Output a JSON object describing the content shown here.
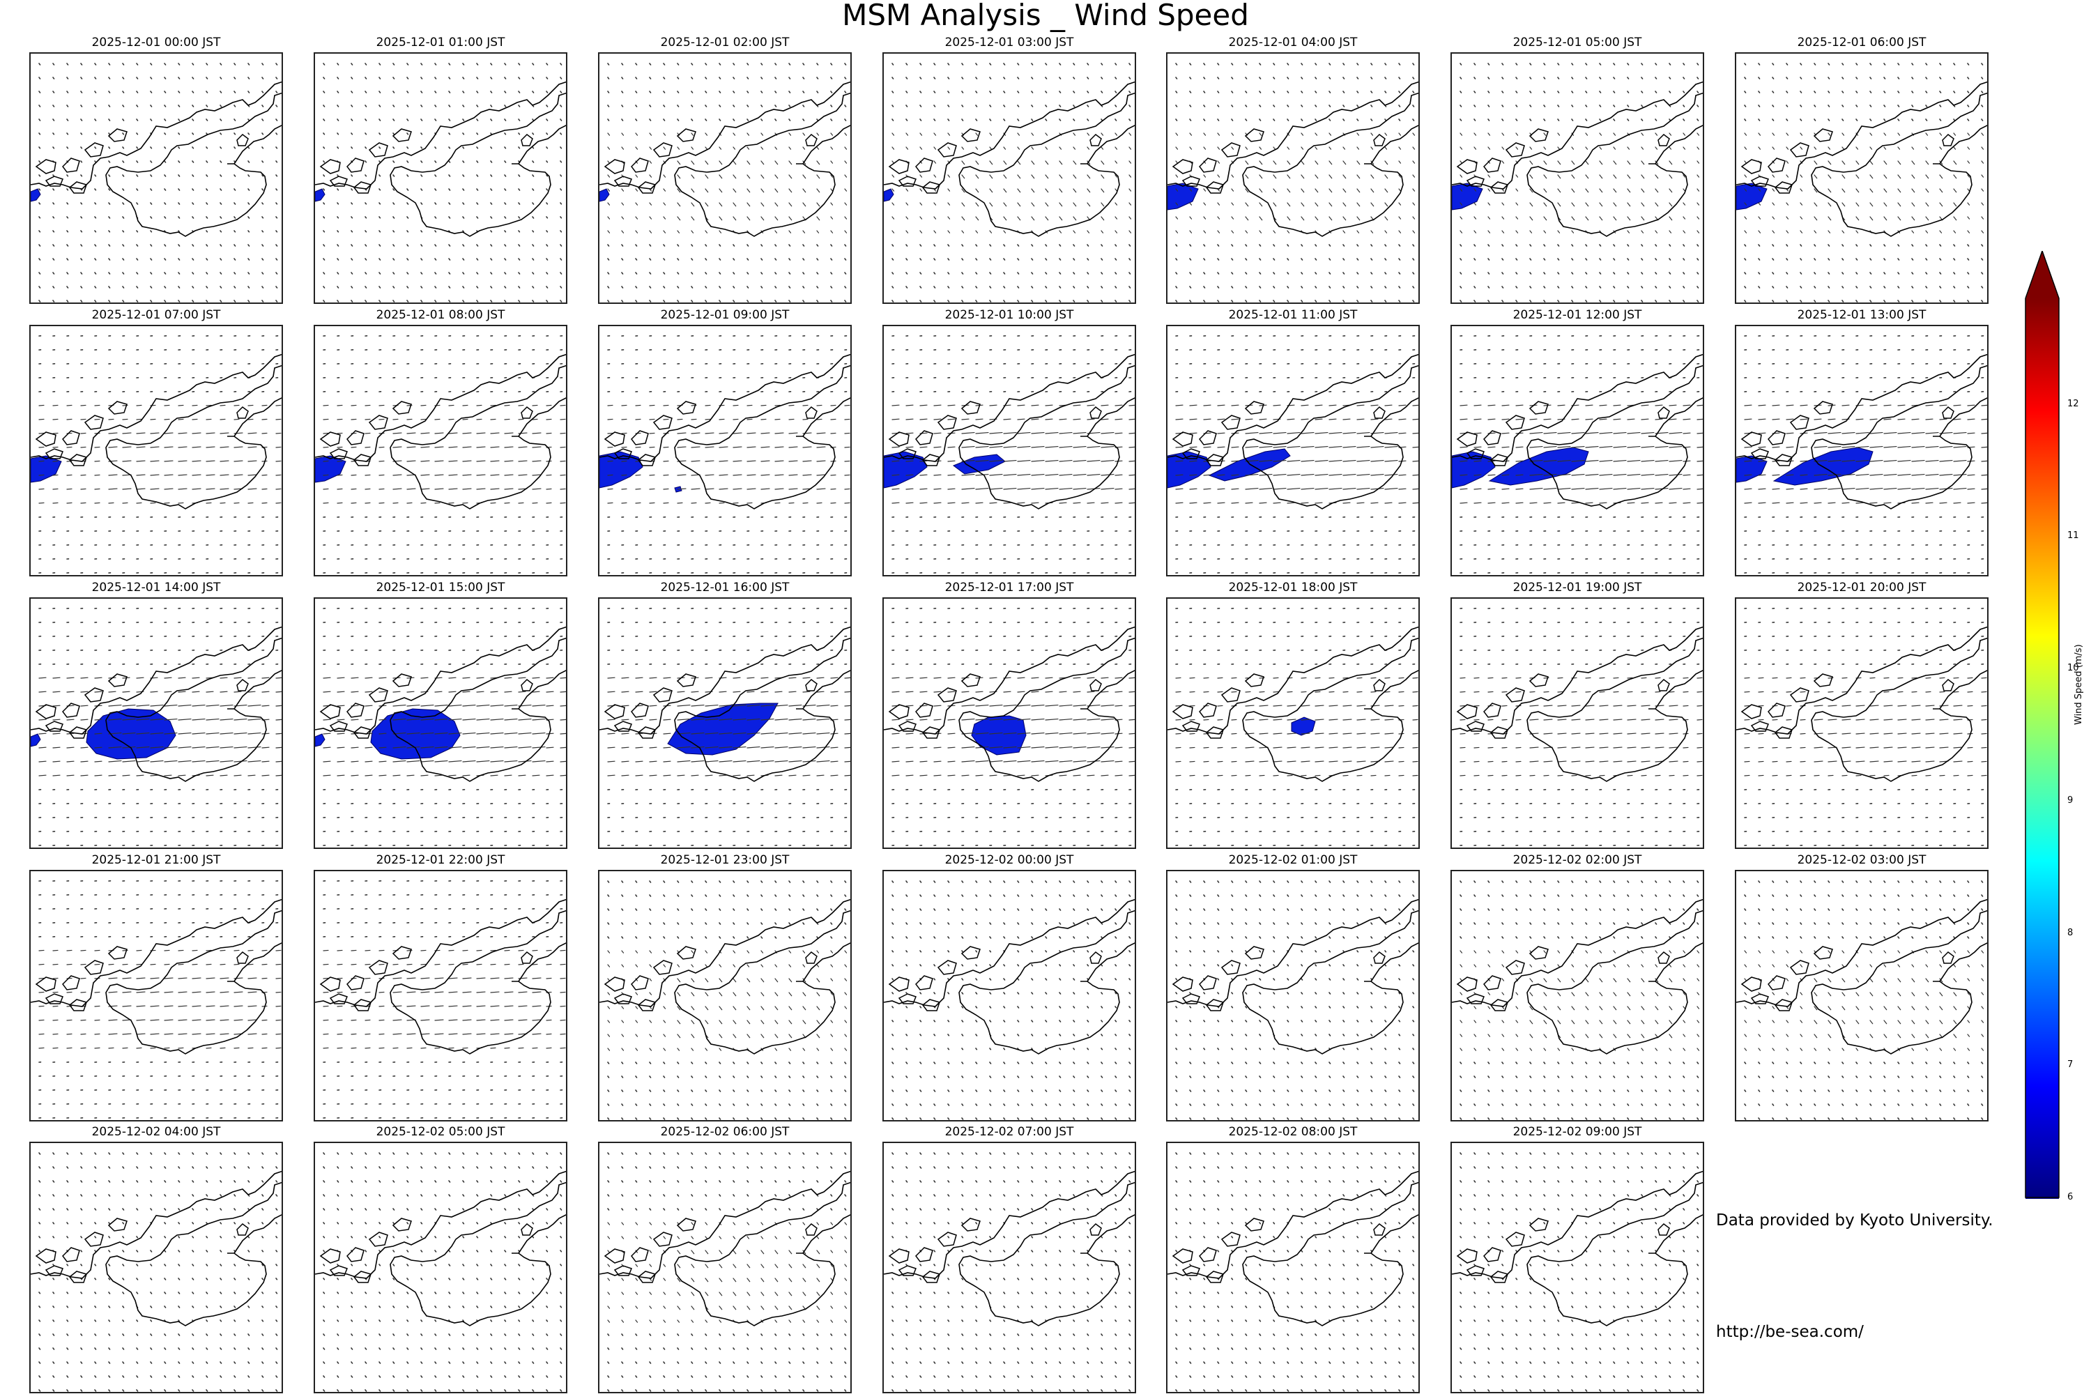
{
  "title": "MSM Analysis _ Wind Speed",
  "panels": [
    {
      "time": "2025-12-01 00:00 JST",
      "wind": "calm",
      "shade": [
        {
          "type": "edge",
          "size": "small"
        }
      ]
    },
    {
      "time": "2025-12-01 01:00 JST",
      "wind": "calm",
      "shade": [
        {
          "type": "edge",
          "size": "small"
        }
      ]
    },
    {
      "time": "2025-12-01 02:00 JST",
      "wind": "light",
      "shade": [
        {
          "type": "edge",
          "size": "small"
        }
      ]
    },
    {
      "time": "2025-12-01 03:00 JST",
      "wind": "light",
      "shade": [
        {
          "type": "edge",
          "size": "small"
        }
      ]
    },
    {
      "time": "2025-12-01 04:00 JST",
      "wind": "light",
      "shade": [
        {
          "type": "edge",
          "size": "medium"
        }
      ]
    },
    {
      "time": "2025-12-01 05:00 JST",
      "wind": "light",
      "shade": [
        {
          "type": "edge",
          "size": "medium"
        }
      ]
    },
    {
      "time": "2025-12-01 06:00 JST",
      "wind": "light",
      "shade": [
        {
          "type": "edge",
          "size": "medium"
        }
      ]
    },
    {
      "time": "2025-12-01 07:00 JST",
      "wind": "moderate",
      "shade": [
        {
          "type": "edge",
          "size": "medium"
        }
      ]
    },
    {
      "time": "2025-12-01 08:00 JST",
      "wind": "moderate",
      "shade": [
        {
          "type": "edge",
          "size": "medium"
        }
      ]
    },
    {
      "time": "2025-12-01 09:00 JST",
      "wind": "moderate",
      "shade": [
        {
          "type": "edge",
          "size": "large"
        },
        {
          "type": "speck"
        }
      ]
    },
    {
      "time": "2025-12-01 10:00 JST",
      "wind": "strong",
      "shade": [
        {
          "type": "edge",
          "size": "large"
        },
        {
          "type": "band",
          "size": "small"
        }
      ]
    },
    {
      "time": "2025-12-01 11:00 JST",
      "wind": "strong",
      "shade": [
        {
          "type": "edge",
          "size": "large"
        },
        {
          "type": "band",
          "size": "medium"
        }
      ]
    },
    {
      "time": "2025-12-01 12:00 JST",
      "wind": "strong",
      "shade": [
        {
          "type": "edge",
          "size": "large"
        },
        {
          "type": "band",
          "size": "large"
        }
      ]
    },
    {
      "time": "2025-12-01 13:00 JST",
      "wind": "strong",
      "shade": [
        {
          "type": "edge",
          "size": "medium"
        },
        {
          "type": "band",
          "size": "large"
        }
      ]
    },
    {
      "time": "2025-12-01 14:00 JST",
      "wind": "strong",
      "shade": [
        {
          "type": "edge",
          "size": "small"
        },
        {
          "type": "blob",
          "size": "large"
        }
      ]
    },
    {
      "time": "2025-12-01 15:00 JST",
      "wind": "strong",
      "shade": [
        {
          "type": "edge",
          "size": "small"
        },
        {
          "type": "blob",
          "size": "large"
        }
      ]
    },
    {
      "time": "2025-12-01 16:00 JST",
      "wind": "strong",
      "shade": [
        {
          "type": "blob",
          "size": "wedge"
        }
      ]
    },
    {
      "time": "2025-12-01 17:00 JST",
      "wind": "strong",
      "shade": [
        {
          "type": "blob",
          "size": "medium"
        }
      ]
    },
    {
      "time": "2025-12-01 18:00 JST",
      "wind": "moderate",
      "shade": [
        {
          "type": "blob",
          "size": "small"
        }
      ]
    },
    {
      "time": "2025-12-01 19:00 JST",
      "wind": "moderate",
      "shade": []
    },
    {
      "time": "2025-12-01 20:00 JST",
      "wind": "moderate",
      "shade": []
    },
    {
      "time": "2025-12-01 21:00 JST",
      "wind": "moderate",
      "shade": []
    },
    {
      "time": "2025-12-01 22:00 JST",
      "wind": "moderate",
      "shade": []
    },
    {
      "time": "2025-12-01 23:00 JST",
      "wind": "light",
      "shade": []
    },
    {
      "time": "2025-12-02 00:00 JST",
      "wind": "calm",
      "shade": []
    },
    {
      "time": "2025-12-02 01:00 JST",
      "wind": "calm",
      "shade": []
    },
    {
      "time": "2025-12-02 02:00 JST",
      "wind": "light",
      "shade": []
    },
    {
      "time": "2025-12-02 03:00 JST",
      "wind": "light",
      "shade": []
    },
    {
      "time": "2025-12-02 04:00 JST",
      "wind": "calm",
      "shade": []
    },
    {
      "time": "2025-12-02 05:00 JST",
      "wind": "calm",
      "shade": []
    },
    {
      "time": "2025-12-02 06:00 JST",
      "wind": "light",
      "shade": []
    },
    {
      "time": "2025-12-02 07:00 JST",
      "wind": "calm",
      "shade": []
    },
    {
      "time": "2025-12-02 08:00 JST",
      "wind": "calm",
      "shade": []
    },
    {
      "time": "2025-12-02 09:00 JST",
      "wind": "calm",
      "shade": []
    }
  ],
  "colorbar": {
    "label": "Wind Speed (m/s)",
    "min": 6,
    "max": 12.8,
    "ticks": [
      "6",
      "7",
      "8",
      "9",
      "10",
      "11",
      "12"
    ],
    "extend": "max",
    "colormap": [
      "#00007f",
      "#0000ff",
      "#007fff",
      "#00ffff",
      "#7fff7f",
      "#ffff00",
      "#ff7f00",
      "#ff0000",
      "#7f0000"
    ]
  },
  "credit": "Data provided by Kyoto University.",
  "url": "http://be-sea.com/"
}
